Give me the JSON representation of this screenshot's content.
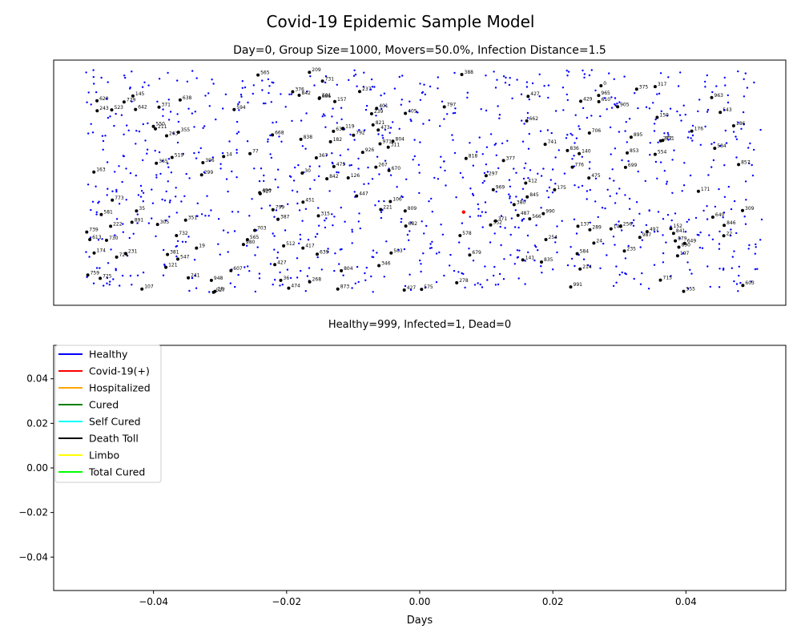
{
  "figure": {
    "title": "Covid-19 Epidemic Sample Model",
    "subtitle": "Day=0, Group Size=1000, Movers=50.0%, Infection Distance=1.5",
    "status": "Healthy=999, Infected=1, Dead=0"
  },
  "colors": {
    "healthy": "#0000ff",
    "covid": "#ff0000",
    "hospitalized": "#ffa500",
    "cured": "#008000",
    "self_cured": "#00ffff",
    "death": "#000000",
    "limbo": "#ffff00",
    "total_cured": "#00ff00"
  },
  "chart_data": [
    {
      "type": "scatter",
      "title": "Day=0, Group Size=1000, Movers=50.0%, Infection Distance=1.5",
      "xlabel": "Healthy=999, Infected=1, Dead=0",
      "ylabel": "",
      "axis_ticks_visible": false,
      "grid": false,
      "series": [
        {
          "name": "Healthy",
          "color": "#0000ff",
          "count": 999
        },
        {
          "name": "Infected",
          "color": "#ff0000",
          "count": 1
        },
        {
          "name": "Dead",
          "color": "#000000",
          "count": 0
        }
      ],
      "labeled_points": [
        {
          "label": "267"
        },
        {
          "label": "388"
        },
        {
          "label": "299"
        },
        {
          "label": "666"
        },
        {
          "label": "14"
        },
        {
          "label": "405"
        },
        {
          "label": "809"
        },
        {
          "label": "547"
        },
        {
          "label": "724"
        },
        {
          "label": "186"
        },
        {
          "label": "895"
        },
        {
          "label": "610"
        },
        {
          "label": "730"
        },
        {
          "label": "171"
        },
        {
          "label": "197"
        },
        {
          "label": "239"
        },
        {
          "label": "241"
        },
        {
          "label": "497"
        },
        {
          "label": "107"
        },
        {
          "label": "633"
        },
        {
          "label": "603"
        },
        {
          "label": "991"
        },
        {
          "label": "137"
        },
        {
          "label": "838"
        },
        {
          "label": "963"
        },
        {
          "label": "797"
        },
        {
          "label": "670"
        },
        {
          "label": "387"
        },
        {
          "label": "305"
        },
        {
          "label": "451"
        },
        {
          "label": "237"
        },
        {
          "label": "377"
        },
        {
          "label": "818"
        },
        {
          "label": "365"
        },
        {
          "label": "799"
        },
        {
          "label": "543"
        },
        {
          "label": "351"
        },
        {
          "label": "427"
        },
        {
          "label": "591"
        },
        {
          "label": "375"
        },
        {
          "label": "948"
        },
        {
          "label": "396"
        },
        {
          "label": "841"
        },
        {
          "label": "231"
        },
        {
          "label": "145"
        },
        {
          "label": "552"
        },
        {
          "label": "475"
        },
        {
          "label": "527"
        },
        {
          "label": "19"
        },
        {
          "label": "835"
        },
        {
          "label": "842"
        },
        {
          "label": "739"
        },
        {
          "label": "980"
        },
        {
          "label": "222"
        },
        {
          "label": "141"
        },
        {
          "label": "126"
        },
        {
          "label": "679"
        },
        {
          "label": "152"
        },
        {
          "label": "140"
        },
        {
          "label": "682"
        },
        {
          "label": "629"
        },
        {
          "label": "254"
        },
        {
          "label": "371"
        },
        {
          "label": "412"
        },
        {
          "label": "311"
        },
        {
          "label": "649"
        },
        {
          "label": "24"
        },
        {
          "label": "512"
        },
        {
          "label": "584"
        },
        {
          "label": "821"
        },
        {
          "label": "607"
        },
        {
          "label": "18"
        },
        {
          "label": "578"
        },
        {
          "label": "581"
        },
        {
          "label": "853"
        },
        {
          "label": "317"
        },
        {
          "label": "36"
        },
        {
          "label": "836"
        },
        {
          "label": "475"
        },
        {
          "label": "565"
        },
        {
          "label": "376"
        },
        {
          "label": "473"
        },
        {
          "label": "703"
        },
        {
          "label": "235"
        },
        {
          "label": "965"
        },
        {
          "label": "575"
        },
        {
          "label": "30"
        },
        {
          "label": "891"
        },
        {
          "label": "380"
        },
        {
          "label": "639"
        },
        {
          "label": "555"
        },
        {
          "label": "256"
        },
        {
          "label": "175"
        },
        {
          "label": "447"
        },
        {
          "label": "221"
        },
        {
          "label": "927"
        },
        {
          "label": "845"
        },
        {
          "label": "792"
        },
        {
          "label": "554"
        },
        {
          "label": "890"
        },
        {
          "label": "143"
        },
        {
          "label": "209"
        },
        {
          "label": "243"
        },
        {
          "label": "668"
        },
        {
          "label": "741"
        },
        {
          "label": "732"
        },
        {
          "label": "297"
        },
        {
          "label": "77"
        },
        {
          "label": "176"
        },
        {
          "label": "969"
        },
        {
          "label": "417"
        },
        {
          "label": "873"
        },
        {
          "label": "613"
        },
        {
          "label": "315"
        },
        {
          "label": "35"
        },
        {
          "label": "119"
        },
        {
          "label": "594"
        },
        {
          "label": "706"
        },
        {
          "label": "278"
        },
        {
          "label": "268"
        },
        {
          "label": "367"
        },
        {
          "label": "662"
        },
        {
          "label": "699"
        },
        {
          "label": "371"
        },
        {
          "label": "519"
        },
        {
          "label": "150"
        },
        {
          "label": "346"
        },
        {
          "label": "842"
        },
        {
          "label": "759"
        },
        {
          "label": "474"
        },
        {
          "label": "272"
        },
        {
          "label": "905"
        },
        {
          "label": "776"
        },
        {
          "label": "182"
        },
        {
          "label": "429"
        },
        {
          "label": "550"
        },
        {
          "label": "729"
        },
        {
          "label": "987"
        },
        {
          "label": "926"
        },
        {
          "label": "121"
        },
        {
          "label": "157"
        },
        {
          "label": "427"
        },
        {
          "label": "811"
        },
        {
          "label": "565"
        },
        {
          "label": "731"
        },
        {
          "label": "214"
        },
        {
          "label": "773"
        },
        {
          "label": "496"
        },
        {
          "label": "804"
        },
        {
          "label": "106"
        },
        {
          "label": "163"
        },
        {
          "label": "715"
        },
        {
          "label": "642"
        },
        {
          "label": "638"
        },
        {
          "label": "355"
        },
        {
          "label": "846"
        },
        {
          "label": "523"
        },
        {
          "label": "990"
        },
        {
          "label": "879"
        },
        {
          "label": "174"
        },
        {
          "label": "857"
        },
        {
          "label": "289"
        },
        {
          "label": "640"
        },
        {
          "label": "263"
        },
        {
          "label": "427"
        },
        {
          "label": "401"
        },
        {
          "label": "309"
        },
        {
          "label": "804"
        },
        {
          "label": "503"
        },
        {
          "label": "487"
        },
        {
          "label": "566"
        },
        {
          "label": "211"
        },
        {
          "label": "381"
        },
        {
          "label": "22"
        },
        {
          "label": "584"
        },
        {
          "label": "971"
        },
        {
          "label": "725"
        },
        {
          "label": "0"
        }
      ]
    },
    {
      "type": "line",
      "title": "",
      "xlabel": "Days",
      "ylabel": "",
      "xlim": [
        -0.055,
        0.055
      ],
      "ylim": [
        -0.055,
        0.055
      ],
      "xticks": [
        "−0.04",
        "−0.02",
        "0.00",
        "0.02",
        "0.04"
      ],
      "xtick_values": [
        -0.04,
        -0.02,
        0.0,
        0.02,
        0.04
      ],
      "yticks": [
        "−0.04",
        "−0.02",
        "0.00",
        "0.02",
        "0.04"
      ],
      "ytick_values": [
        -0.04,
        -0.02,
        0.0,
        0.02,
        0.04
      ],
      "grid": false,
      "legend_position": "upper-left",
      "series": [
        {
          "name": "Healthy",
          "color": "#0000ff",
          "values": []
        },
        {
          "name": "Covid-19(+)",
          "color": "#ff0000",
          "values": []
        },
        {
          "name": "Hospitalized",
          "color": "#ffa500",
          "values": []
        },
        {
          "name": "Cured",
          "color": "#008000",
          "values": []
        },
        {
          "name": "Self Cured",
          "color": "#00ffff",
          "values": []
        },
        {
          "name": "Death Toll",
          "color": "#000000",
          "values": []
        },
        {
          "name": "Limbo",
          "color": "#ffff00",
          "values": []
        },
        {
          "name": "Total Cured",
          "color": "#00ff00",
          "values": []
        }
      ]
    }
  ]
}
